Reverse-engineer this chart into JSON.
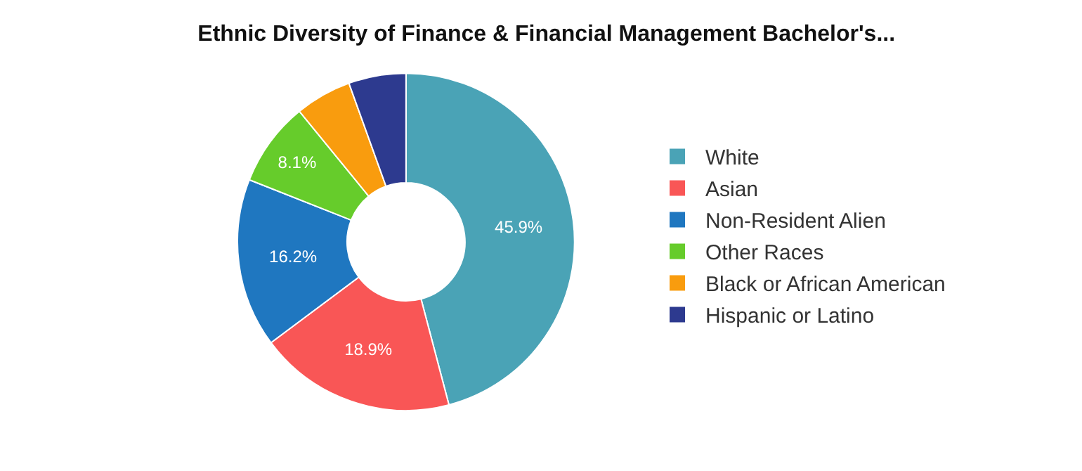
{
  "chart_data": {
    "type": "donut",
    "title": "Ethnic Diversity of Finance & Financial Management Bachelor's...",
    "categories": [
      "White",
      "Asian",
      "Non-Resident Alien",
      "Other Races",
      "Black or African American",
      "Hispanic or Latino"
    ],
    "values": [
      45.9,
      18.9,
      16.2,
      8.1,
      5.4,
      5.5
    ],
    "value_labels": [
      "45.9%",
      "18.9%",
      "16.2%",
      "8.1%",
      null,
      null
    ],
    "colors": [
      "#4aa3b6",
      "#f95656",
      "#1f77c0",
      "#66cc2b",
      "#f99c0e",
      "#2d3a8f"
    ],
    "legend": "right"
  }
}
